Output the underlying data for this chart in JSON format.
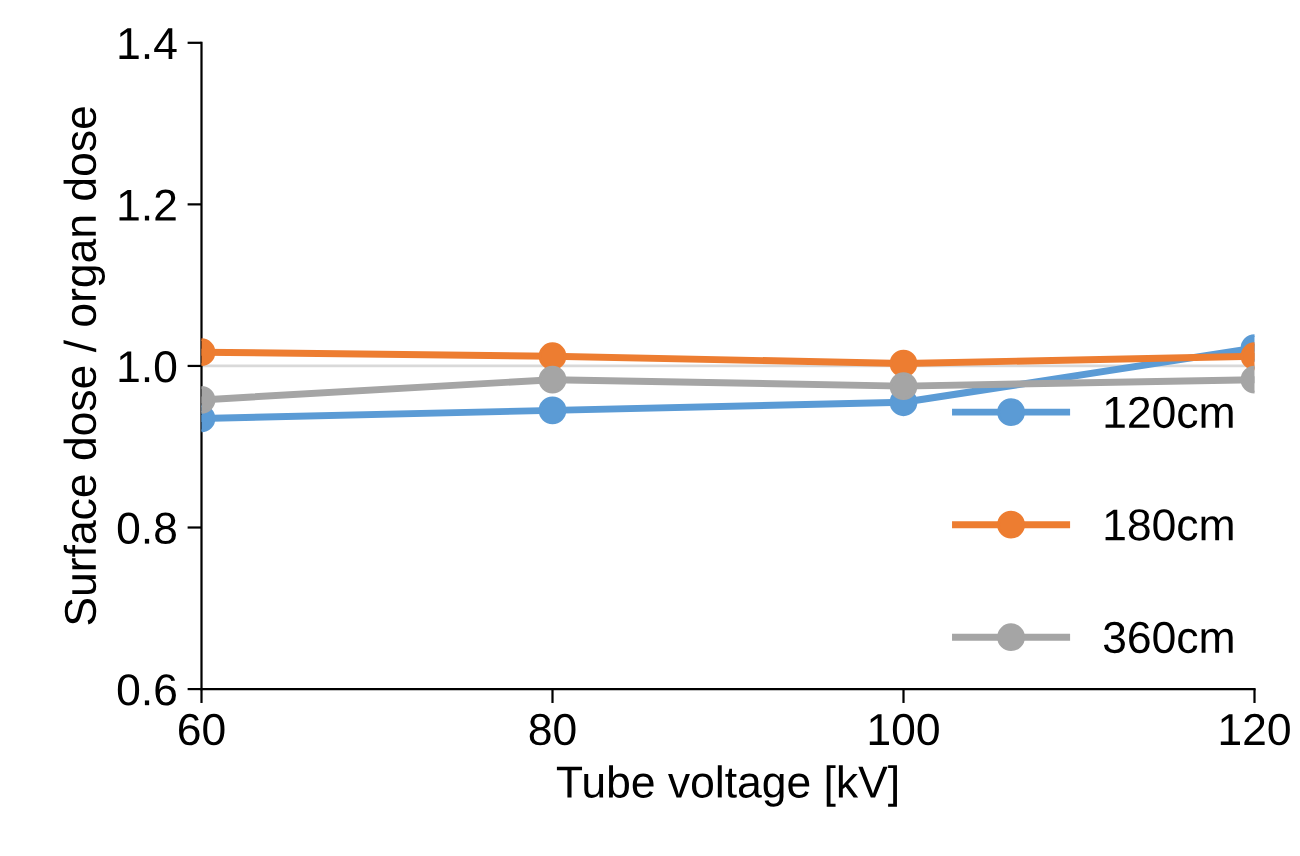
{
  "chart_data": {
    "type": "line",
    "xlabel": "Tube voltage [kV]",
    "ylabel": "Surface dose / organ dose",
    "x": [
      60,
      80,
      100,
      120
    ],
    "series": [
      {
        "name": "120cm",
        "color": "#5b9bd5",
        "values": [
          0.935,
          0.945,
          0.955,
          1.022
        ]
      },
      {
        "name": "180cm",
        "color": "#ed7d31",
        "values": [
          1.017,
          1.012,
          1.003,
          1.012
        ]
      },
      {
        "name": "360cm",
        "color": "#a5a5a5",
        "values": [
          0.958,
          0.983,
          0.975,
          0.983
        ]
      }
    ],
    "xlim": [
      60,
      120
    ],
    "xticks": [
      60,
      80,
      100,
      120
    ],
    "ylim": [
      0.6,
      1.4
    ],
    "yticks": [
      {
        "value": 0.6,
        "label": "0.6"
      },
      {
        "value": 0.8,
        "label": "0.8"
      },
      {
        "value": 1.0,
        "label": "1.0"
      },
      {
        "value": 1.2,
        "label": "1.2"
      },
      {
        "value": 1.4,
        "label": "1.4"
      }
    ],
    "ref_lines": [
      {
        "axis": "y",
        "value": 1.0,
        "color": "#d9d9d9"
      }
    ],
    "legend": "bottom right",
    "marker": "circle",
    "line_style": "solid",
    "grid": false
  }
}
